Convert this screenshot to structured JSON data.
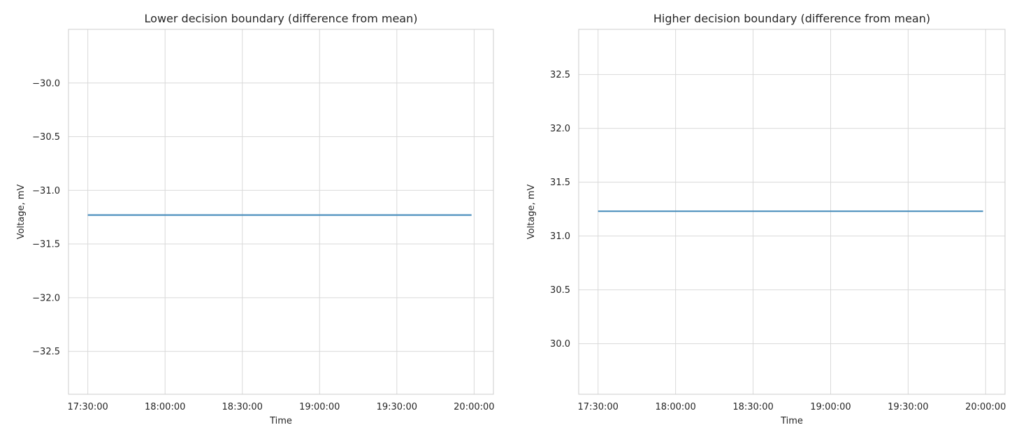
{
  "chart_data": [
    {
      "type": "line",
      "title": "Lower decision boundary (difference from mean)",
      "xlabel": "Time",
      "ylabel": "Voltage, mV",
      "x_ticks": [
        "17:30:00",
        "18:00:00",
        "18:30:00",
        "19:00:00",
        "19:30:00",
        "20:00:00"
      ],
      "xlim": [
        "17:22:30",
        "20:07:30"
      ],
      "y_ticks": [
        -30.0,
        -30.5,
        -31.0,
        -31.5,
        -32.0,
        -32.5
      ],
      "y_tick_labels": [
        "−30.0",
        "−30.5",
        "−31.0",
        "−31.5",
        "−32.0",
        "−32.5"
      ],
      "ylim": [
        -32.9,
        -29.5
      ],
      "grid": true,
      "series": [
        {
          "color": "#4c8fbd",
          "x": [
            "17:30:00",
            "19:59:00"
          ],
          "y": [
            -31.23,
            -31.23
          ]
        }
      ]
    },
    {
      "type": "line",
      "title": "Higher decision boundary (difference from mean)",
      "xlabel": "Time",
      "ylabel": "Voltage, mV",
      "x_ticks": [
        "17:30:00",
        "18:00:00",
        "18:30:00",
        "19:00:00",
        "19:30:00",
        "20:00:00"
      ],
      "xlim": [
        "17:22:30",
        "20:07:30"
      ],
      "y_ticks": [
        30.0,
        30.5,
        31.0,
        31.5,
        32.0,
        32.5
      ],
      "y_tick_labels": [
        "30.0",
        "30.5",
        "31.0",
        "31.5",
        "32.0",
        "32.5"
      ],
      "ylim": [
        29.53,
        32.92
      ],
      "grid": true,
      "series": [
        {
          "color": "#4c8fbd",
          "x": [
            "17:30:00",
            "19:59:00"
          ],
          "y": [
            31.23,
            31.23
          ]
        }
      ]
    }
  ]
}
